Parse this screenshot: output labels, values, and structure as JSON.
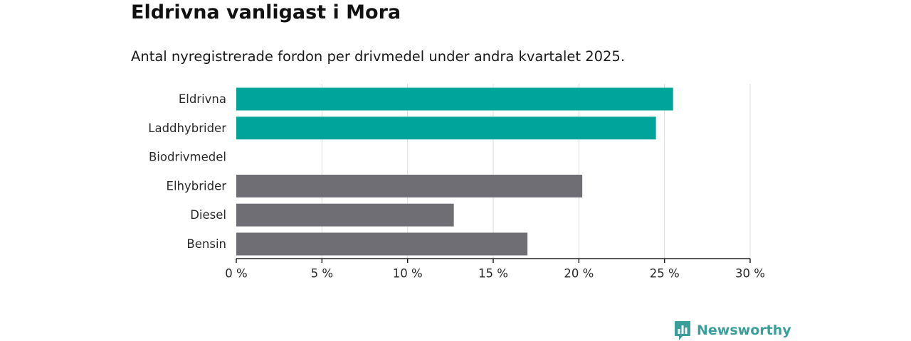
{
  "header": {
    "title": "Eldrivna vanligast i Mora",
    "subtitle": "Antal nyregistrerade fordon per drivmedel under andra kvartalet 2025."
  },
  "brand": {
    "name": "Newsworthy",
    "color": "#3a9e9a",
    "icon": "bar-chart-speech-bubble-icon"
  },
  "colors": {
    "highlight": "#00a49a",
    "other": "#6f6e75",
    "grid": "#dddddd",
    "axis": "#222222"
  },
  "chart_data": {
    "type": "bar",
    "orientation": "horizontal",
    "title": "Eldrivna vanligast i Mora",
    "subtitle": "Antal nyregistrerade fordon per drivmedel under andra kvartalet 2025.",
    "categories": [
      "Eldrivna",
      "Laddhybrider",
      "Biodrivmedel",
      "Elhybrider",
      "Diesel",
      "Bensin"
    ],
    "values": [
      25.5,
      24.5,
      0,
      20.2,
      12.7,
      17.0
    ],
    "highlighted": [
      true,
      true,
      false,
      false,
      false,
      false
    ],
    "unit": "%",
    "xlim": [
      0,
      30
    ],
    "xticks": [
      0,
      5,
      10,
      15,
      20,
      25,
      30
    ],
    "xtick_labels": [
      "0 %",
      "5 %",
      "10 %",
      "15 %",
      "20 %",
      "25 %",
      "30 %"
    ],
    "grid": "vertical",
    "legend": "none"
  }
}
